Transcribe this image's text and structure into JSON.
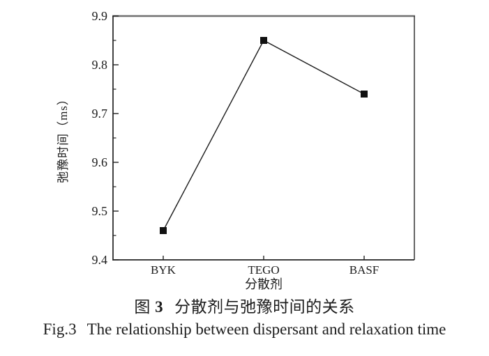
{
  "figure": {
    "caption_cn": {
      "label": "图",
      "number": "3",
      "title": "分散剂与弛豫时间的关系"
    },
    "caption_en": {
      "label": "Fig.3",
      "title": "The relationship between dispersant and relaxation time"
    }
  },
  "chart_data": {
    "type": "line",
    "categories": [
      "BYK",
      "TEGO",
      "BASF"
    ],
    "values": [
      9.46,
      9.85,
      9.74
    ],
    "title": "",
    "xlabel": "分散剂",
    "ylabel": "弛豫时间（ms）",
    "ylim": [
      9.4,
      9.9
    ],
    "yticks": [
      "9.4",
      "9.5",
      "9.6",
      "9.7",
      "9.8",
      "9.9"
    ],
    "yminor_step": 0.05,
    "marker": "filled-square",
    "marker_size": 10,
    "line_color": "#1c1c1c",
    "marker_color": "#111111",
    "axis_color": "#222222",
    "frame_top_color": "#6f6f6f",
    "frame_right_color": "#333333",
    "tick_label_color": "#1c1c1c",
    "grid": false,
    "legend": "none"
  }
}
